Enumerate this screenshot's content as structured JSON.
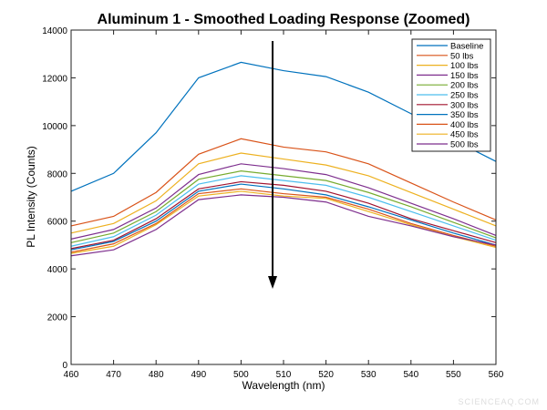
{
  "chart_data": {
    "type": "line",
    "title": "Aluminum 1 - Smoothed Loading Response (Zoomed)",
    "xlabel": "Wavelength (nm)",
    "ylabel": "PL Intensity (Counts)",
    "xlim": [
      460,
      560
    ],
    "ylim": [
      0,
      14000
    ],
    "xticks": [
      460,
      470,
      480,
      490,
      500,
      510,
      520,
      530,
      540,
      550,
      560
    ],
    "yticks": [
      0,
      2000,
      4000,
      6000,
      8000,
      10000,
      12000,
      14000
    ],
    "grid": false,
    "legend_position": "top-right",
    "annotation": "downward arrow near 508 nm from ~13400 to ~3200 counts",
    "x": [
      460,
      470,
      480,
      490,
      500,
      510,
      520,
      530,
      540,
      550,
      560
    ],
    "series": [
      {
        "name": "Baseline",
        "color": "#0072BD",
        "values": [
          7250,
          8000,
          9700,
          12000,
          12650,
          12300,
          12050,
          11400,
          10500,
          9400,
          8500
        ]
      },
      {
        "name": "50 lbs",
        "color": "#D95319",
        "values": [
          5800,
          6200,
          7200,
          8800,
          9450,
          9100,
          8900,
          8400,
          7600,
          6800,
          6050
        ]
      },
      {
        "name": "100 lbs",
        "color": "#EDB120",
        "values": [
          5500,
          5900,
          6850,
          8400,
          8850,
          8600,
          8350,
          7900,
          7200,
          6500,
          5800
        ]
      },
      {
        "name": "150 lbs",
        "color": "#7E2F8E",
        "values": [
          5250,
          5650,
          6550,
          7950,
          8400,
          8200,
          7950,
          7400,
          6750,
          6100,
          5400
        ]
      },
      {
        "name": "200 lbs",
        "color": "#77AC30",
        "values": [
          5100,
          5500,
          6400,
          7750,
          8100,
          7900,
          7700,
          7200,
          6600,
          5950,
          5300
        ]
      },
      {
        "name": "250 lbs",
        "color": "#4DBEEE",
        "values": [
          4950,
          5350,
          6250,
          7550,
          7900,
          7700,
          7500,
          7000,
          6400,
          5800,
          5200
        ]
      },
      {
        "name": "300 lbs",
        "color": "#A2142F",
        "values": [
          4850,
          5200,
          6100,
          7350,
          7650,
          7500,
          7250,
          6750,
          6100,
          5600,
          5100
        ]
      },
      {
        "name": "350 lbs",
        "color": "#0072BD",
        "values": [
          4800,
          5150,
          6000,
          7250,
          7550,
          7350,
          7100,
          6600,
          6050,
          5500,
          5000
        ]
      },
      {
        "name": "400 lbs",
        "color": "#D95319",
        "values": [
          4700,
          5050,
          5900,
          7150,
          7350,
          7150,
          7000,
          6500,
          5900,
          5400,
          4950
        ]
      },
      {
        "name": "450 lbs",
        "color": "#EDB120",
        "values": [
          4650,
          4950,
          5850,
          7050,
          7250,
          7050,
          6950,
          6400,
          5850,
          5350,
          4900
        ]
      },
      {
        "name": "500 lbs",
        "color": "#7E2F8E",
        "values": [
          4550,
          4800,
          5650,
          6900,
          7100,
          7000,
          6800,
          6200,
          5800,
          5350,
          5000
        ]
      }
    ]
  },
  "watermark": "SCIENCEAQ.COM"
}
